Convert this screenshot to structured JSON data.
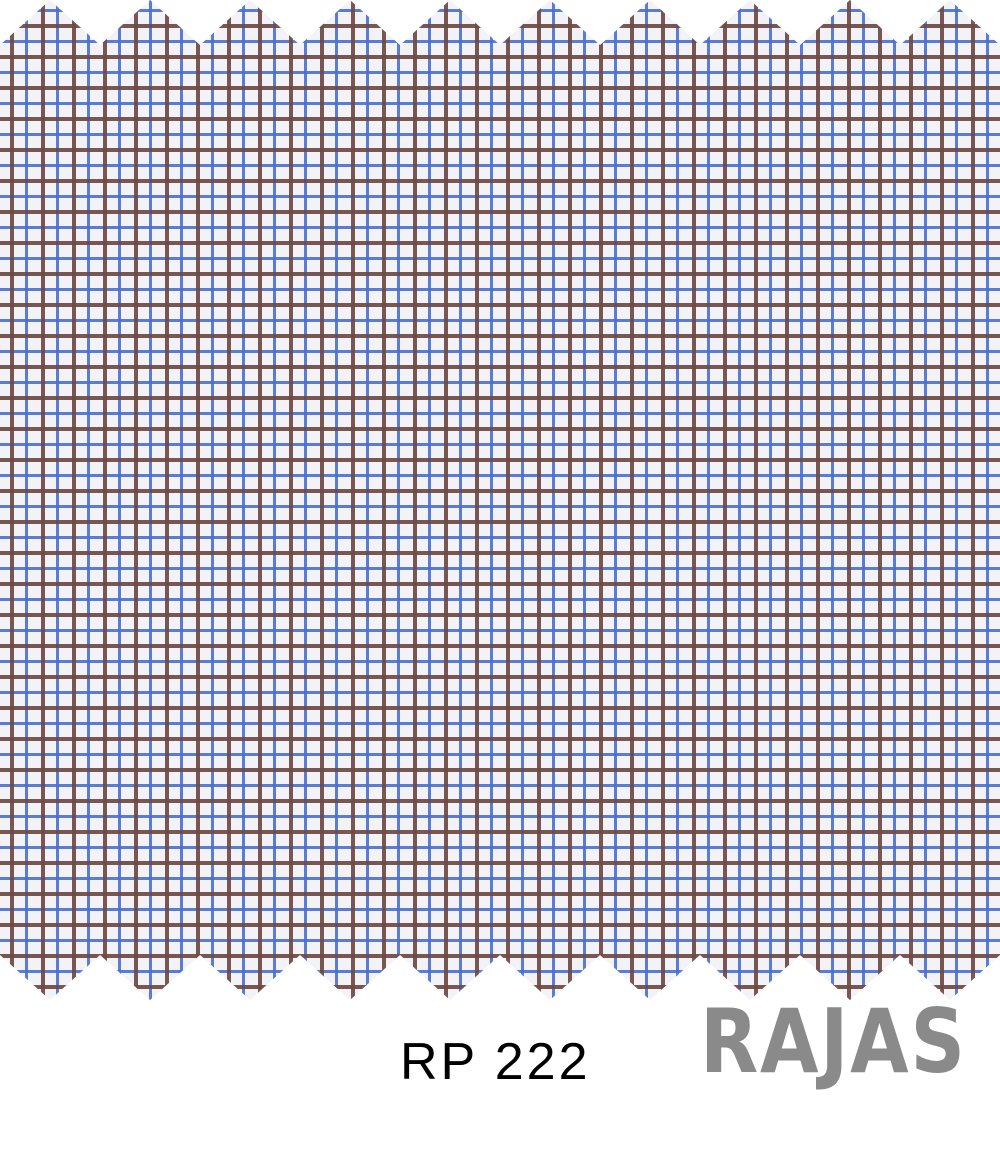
{
  "swatch": {
    "code": "RP 222",
    "brand": "RAJAS",
    "pattern": "tattersall-check",
    "colors": {
      "ground": "#f3f2f7",
      "stripe_blue": "#4a6fd0",
      "stripe_brown": "#6e4a45",
      "brand_grey": "#8a8a8a",
      "code_text": "#000000"
    }
  }
}
